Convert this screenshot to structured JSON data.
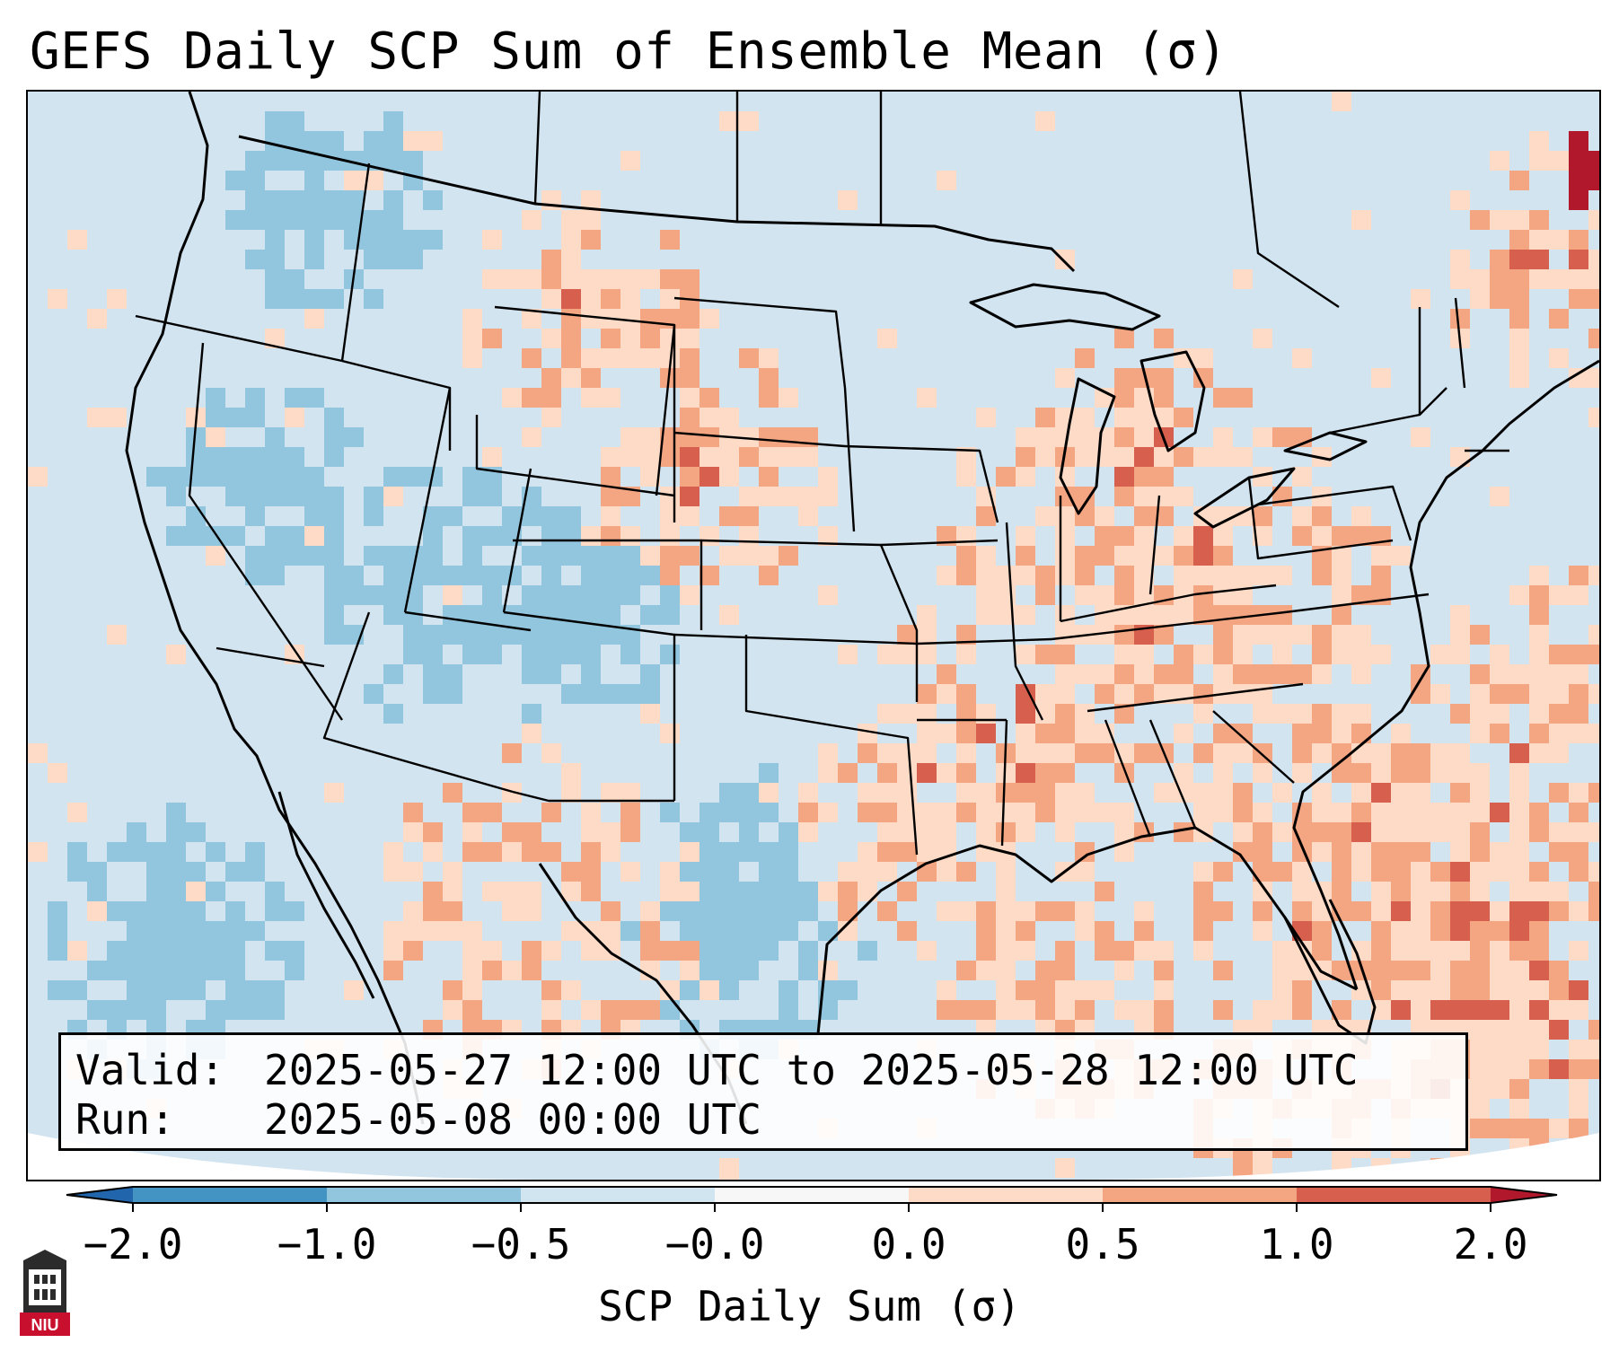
{
  "title": "GEFS Daily SCP Sum of Ensemble Mean (σ)",
  "info": {
    "valid_label": "Valid:",
    "valid_value": "2025-05-27 12:00 UTC to 2025-05-28 12:00 UTC",
    "run_label": "Run:",
    "run_value": "2025-05-08 00:00 UTC"
  },
  "colorbar": {
    "label": "SCP Daily Sum (σ)",
    "ticks": [
      "−2.0",
      "−1.0",
      "−0.5",
      "−0.0",
      "0.0",
      "0.5",
      "1.0",
      "2.0"
    ],
    "bins": [
      {
        "range": "< -2.0",
        "color": "#2166ac"
      },
      {
        "range": "-2.0 to -1.0",
        "color": "#4393c3"
      },
      {
        "range": "-1.0 to -0.5",
        "color": "#92c5de"
      },
      {
        "range": "-0.5 to -0.0",
        "color": "#d1e5f0"
      },
      {
        "range": "-0.0 to 0.0",
        "color": "#f7f7f7"
      },
      {
        "range": "0.0 to 0.5",
        "color": "#fddbc7"
      },
      {
        "range": "0.5 to 1.0",
        "color": "#f4a582"
      },
      {
        "range": "1.0 to 2.0",
        "color": "#d6604d"
      },
      {
        "range": "> 2.0",
        "color": "#b2182b"
      }
    ]
  },
  "map": {
    "region": "Contiguous United States",
    "colors": {
      "neg_strong": "#92c5de",
      "neg_weak": "#d1e5f0",
      "pos_weak": "#fddbc7",
      "pos_mid": "#f4a582",
      "pos_strong": "#d6604d",
      "pos_max": "#b2182b",
      "boundary": "#000000"
    }
  },
  "logo": {
    "text": "NIU",
    "colors": {
      "tower": "#2b2b2b",
      "base": "#c8102e"
    }
  }
}
